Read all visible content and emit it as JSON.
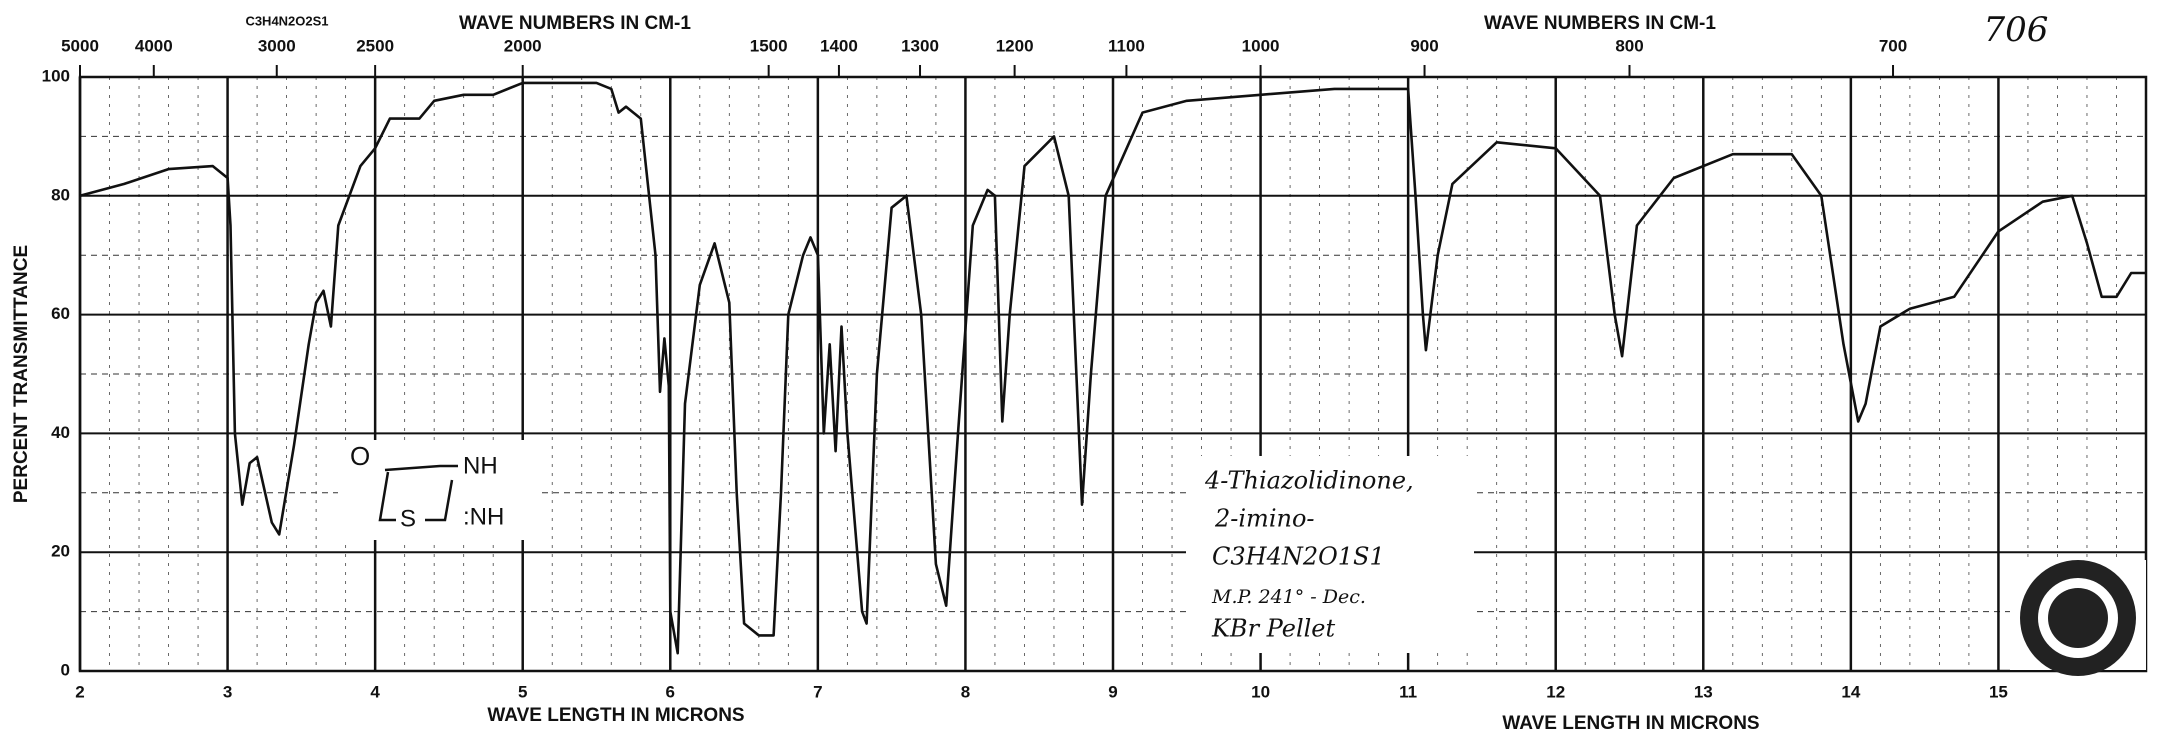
{
  "chart_data": {
    "type": "line",
    "xlabel": "WAVE LENGTH IN MICRONS",
    "x2label": "WAVE NUMBERS IN CM-1",
    "ylabel": "PERCENT TRANSMITTANCE",
    "xlim": [
      2,
      16
    ],
    "xticks": [
      2,
      3,
      4,
      5,
      6,
      7,
      8,
      9,
      10,
      11,
      12,
      13,
      14,
      15
    ],
    "x2scale": "reciprocal",
    "x2ticks": [
      5000,
      4000,
      3000,
      2500,
      2000,
      1500,
      1400,
      1300,
      1200,
      1100,
      1000,
      900,
      800,
      700
    ],
    "ylim": [
      0,
      100
    ],
    "yticks": [
      0,
      20,
      40,
      60,
      80,
      100
    ],
    "grid": true,
    "x": [
      2.0,
      2.3,
      2.6,
      2.9,
      3.0,
      3.02,
      3.05,
      3.1,
      3.15,
      3.2,
      3.3,
      3.35,
      3.45,
      3.55,
      3.6,
      3.65,
      3.7,
      3.75,
      3.9,
      4.0,
      4.1,
      4.3,
      4.4,
      4.6,
      4.8,
      5.0,
      5.5,
      5.6,
      5.65,
      5.7,
      5.8,
      5.9,
      5.93,
      5.96,
      5.99,
      6.0,
      6.05,
      6.1,
      6.2,
      6.3,
      6.4,
      6.45,
      6.5,
      6.6,
      6.7,
      6.75,
      6.8,
      6.9,
      6.95,
      7.0,
      7.04,
      7.08,
      7.12,
      7.16,
      7.2,
      7.3,
      7.33,
      7.4,
      7.5,
      7.6,
      7.7,
      7.8,
      7.87,
      7.95,
      8.05,
      8.15,
      8.2,
      8.25,
      8.3,
      8.4,
      8.6,
      8.7,
      8.79,
      8.85,
      8.95,
      9.2,
      9.5,
      10.0,
      10.5,
      11.0,
      11.05,
      11.1,
      11.12,
      11.2,
      11.3,
      11.6,
      12.0,
      12.3,
      12.4,
      12.45,
      12.55,
      12.8,
      13.2,
      13.6,
      13.8,
      13.95,
      14.05,
      14.1,
      14.2,
      14.4,
      14.7,
      15.0,
      15.3,
      15.5,
      15.6,
      15.7,
      15.8,
      15.9,
      16.0
    ],
    "series": [
      {
        "color": "#111111",
        "values": [
          80,
          82,
          84.5,
          85,
          83,
          75,
          40,
          28,
          35,
          36,
          25,
          23,
          38,
          55,
          62,
          64,
          58,
          75,
          85,
          88,
          93,
          93,
          96,
          97,
          97,
          99,
          99,
          98,
          94,
          95,
          93,
          70,
          47,
          56,
          48,
          10,
          3,
          45,
          65,
          72,
          62,
          30,
          8,
          6,
          6,
          30,
          60,
          70,
          73,
          70,
          40,
          55,
          37,
          58,
          40,
          10,
          8,
          50,
          78,
          80,
          60,
          18,
          11,
          40,
          75,
          81,
          80,
          42,
          60,
          85,
          90,
          80,
          28,
          50,
          80,
          94,
          96,
          97,
          98,
          98,
          80,
          60,
          54,
          70,
          82,
          89,
          88,
          80,
          60,
          53,
          75,
          83,
          87,
          87,
          80,
          55,
          42,
          45,
          58,
          61,
          63,
          74,
          79,
          80,
          72,
          63,
          63,
          67,
          67
        ]
      }
    ],
    "annotations": [
      "706",
      "C3H4N2O2S1",
      "WAVE NUMBERS IN CM-1",
      "WAVE LENGTH IN MICRONS",
      "4-Thiazolidinone,",
      "2-imino-",
      "C3H4N2O1S1",
      "M.P. 241° - Dec.",
      "KBr Pellet",
      "O",
      "NH",
      "S",
      ":NH"
    ]
  }
}
